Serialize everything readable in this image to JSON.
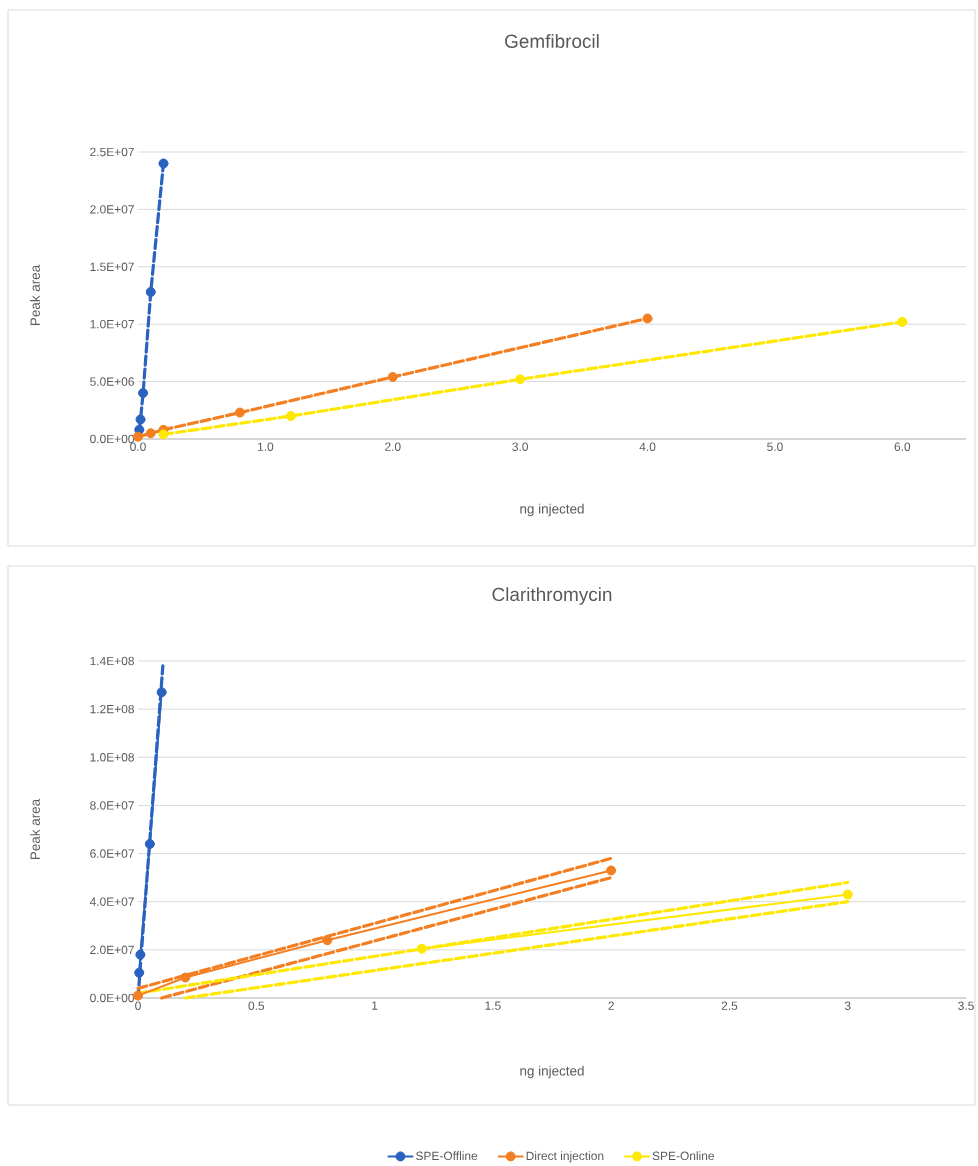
{
  "chart_data": [
    {
      "type": "line",
      "title": "Gemfibrocil",
      "xlabel": "ng injected",
      "ylabel": "Peak area",
      "xlim": [
        0,
        6.5
      ],
      "ylim": [
        0,
        25000000
      ],
      "xticks": [
        {
          "value": 0,
          "label": "0.0"
        },
        {
          "value": 1,
          "label": "1.0"
        },
        {
          "value": 2,
          "label": "2.0"
        },
        {
          "value": 3,
          "label": "3.0"
        },
        {
          "value": 4,
          "label": "4.0"
        },
        {
          "value": 5,
          "label": "5.0"
        },
        {
          "value": 6,
          "label": "6.0"
        }
      ],
      "yticks": [
        {
          "value": 0,
          "label": "0.0E+00"
        },
        {
          "value": 5000000,
          "label": "5.0E+06"
        },
        {
          "value": 10000000,
          "label": "1.0E+07"
        },
        {
          "value": 15000000,
          "label": "1.5E+07"
        },
        {
          "value": 20000000,
          "label": "2.0E+07"
        },
        {
          "value": 25000000,
          "label": "2.5E+07"
        }
      ],
      "grid": "y",
      "marker": "circle",
      "line_style": "dashed",
      "series": [
        {
          "color": "#2a62bf",
          "x": [
            0.01,
            0.02,
            0.04,
            0.1,
            0.2
          ],
          "values": [
            800000,
            1700000,
            4000000,
            12800000,
            24000000
          ]
        },
        {
          "color": "#f47f22",
          "x": [
            0,
            0.1,
            0.2,
            0.8,
            2.0,
            4.0
          ],
          "values": [
            200000,
            500000,
            800000,
            2300000,
            5400000,
            10500000
          ]
        },
        {
          "color": "#ffe800",
          "x": [
            0.2,
            1.2,
            3.0,
            6.0
          ],
          "values": [
            400000,
            2000000,
            5200000,
            10200000
          ]
        }
      ]
    },
    {
      "type": "line",
      "title": "Clarithromycin",
      "xlabel": "ng injected",
      "ylabel": "Peak area",
      "xlim": [
        0,
        3.5
      ],
      "ylim": [
        0,
        140000000
      ],
      "xticks": [
        0,
        0.5,
        1,
        1.5,
        2,
        2.5,
        3,
        3.5
      ],
      "yticks": [
        {
          "value": 0,
          "label": "0.0E+00"
        },
        {
          "value": 20000000,
          "label": "2.0E+07"
        },
        {
          "value": 40000000,
          "label": "4.0E+07"
        },
        {
          "value": 60000000,
          "label": "6.0E+07"
        },
        {
          "value": 80000000,
          "label": "8.0E+07"
        },
        {
          "value": 100000000,
          "label": "1.0E+08"
        },
        {
          "value": 120000000,
          "label": "1.2E+08"
        },
        {
          "value": 140000000,
          "label": "1.4E+08"
        }
      ],
      "grid": "y",
      "marker": "circle",
      "line_style": "solid",
      "legend": "bottom",
      "series": [
        {
          "type": "line",
          "line_style": "dashed",
          "marker": "none",
          "color": "#2a62bf",
          "x": [
            0,
            0.105
          ],
          "values": [
            0,
            138000000
          ]
        },
        {
          "type": "line",
          "line_style": "dashed",
          "marker": "none",
          "color": "#f47f22",
          "x": [
            0,
            2.0
          ],
          "values": [
            4000000,
            58000000
          ]
        },
        {
          "type": "line",
          "line_style": "dashed",
          "marker": "none",
          "color": "#f47f22",
          "x": [
            0.1,
            2.0
          ],
          "values": [
            0,
            50000000
          ]
        },
        {
          "type": "line",
          "line_style": "dashed",
          "marker": "none",
          "color": "#ffe800",
          "x": [
            0,
            3.0
          ],
          "values": [
            2000000,
            48000000
          ]
        },
        {
          "type": "line",
          "line_style": "dashed",
          "marker": "none",
          "color": "#ffe800",
          "x": [
            0.2,
            3.0
          ],
          "values": [
            0,
            40000000
          ]
        },
        {
          "name": "SPE-Offline",
          "color": "#2a62bf",
          "x": [
            0.005,
            0.01,
            0.05,
            0.1
          ],
          "values": [
            10500000,
            18000000,
            64000000,
            127000000
          ]
        },
        {
          "name": "Direct injection",
          "color": "#f47f22",
          "x": [
            0,
            0.2,
            0.8,
            2.0
          ],
          "values": [
            1000000,
            8500000,
            24000000,
            53000000
          ]
        },
        {
          "name": "SPE-Online",
          "color": "#ffe800",
          "x": [
            1.2,
            3.0
          ],
          "values": [
            20500000,
            43000000
          ]
        }
      ]
    }
  ]
}
